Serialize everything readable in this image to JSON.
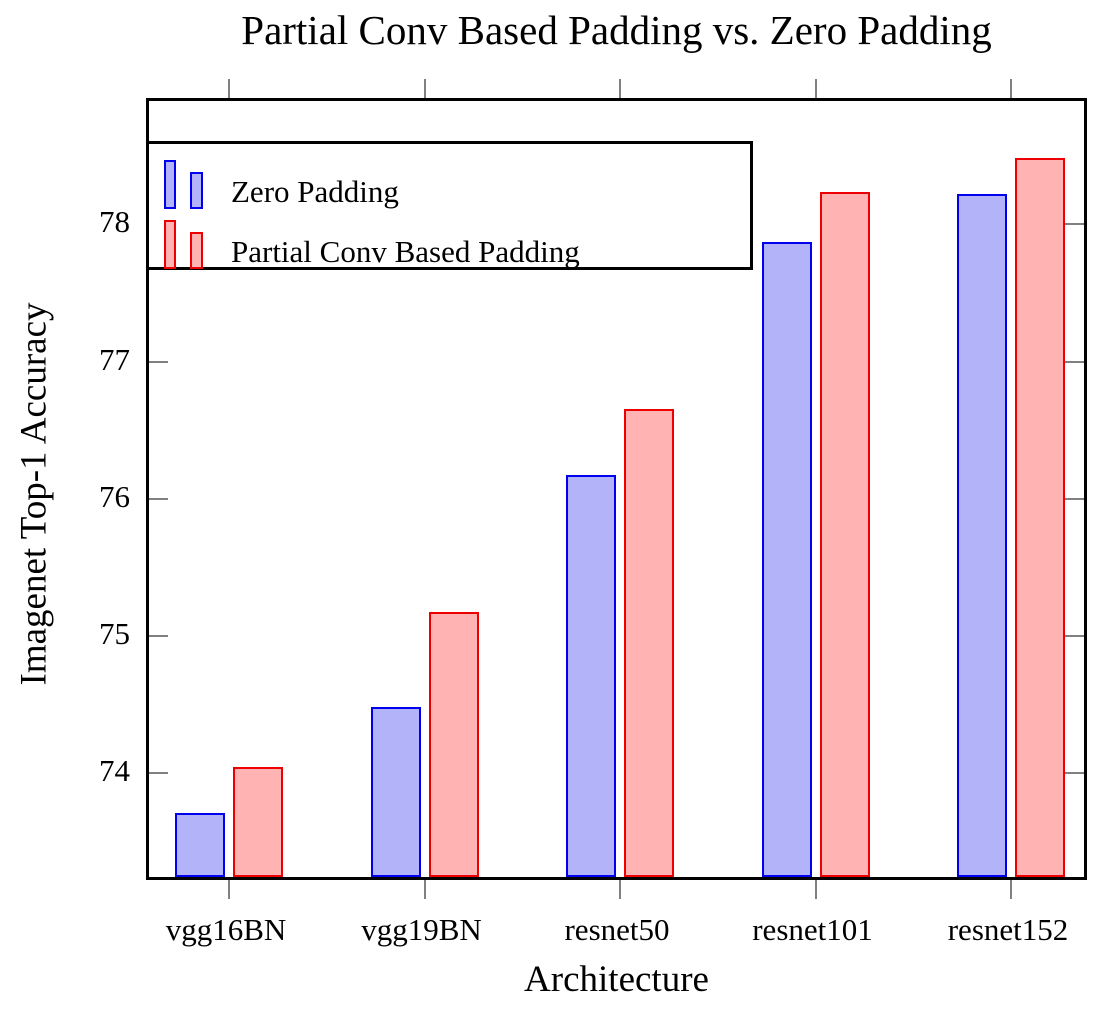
{
  "chart_data": {
    "type": "bar",
    "title": "Partial Conv Based Padding vs. Zero Padding",
    "xlabel": "Architecture",
    "ylabel": "Imagenet Top-1 Accuracy",
    "categories": [
      "vgg16BN",
      "vgg19BN",
      "resnet50",
      "resnet101",
      "resnet152"
    ],
    "series": [
      {
        "name": "Zero Padding",
        "fill_color": "#b3b3fa",
        "border_color": "#0000ee",
        "values": [
          73.67,
          74.44,
          76.13,
          77.83,
          78.18
        ]
      },
      {
        "name": "Partial Conv Based Padding",
        "fill_color": "#ffb3b3",
        "border_color": "#ee0000",
        "values": [
          74.0,
          75.13,
          76.61,
          78.19,
          78.44
        ]
      }
    ],
    "yticks": [
      74,
      75,
      76,
      77,
      78
    ],
    "ylim": [
      73.2,
      78.9
    ],
    "grid": false,
    "legend_position": "top-left"
  }
}
